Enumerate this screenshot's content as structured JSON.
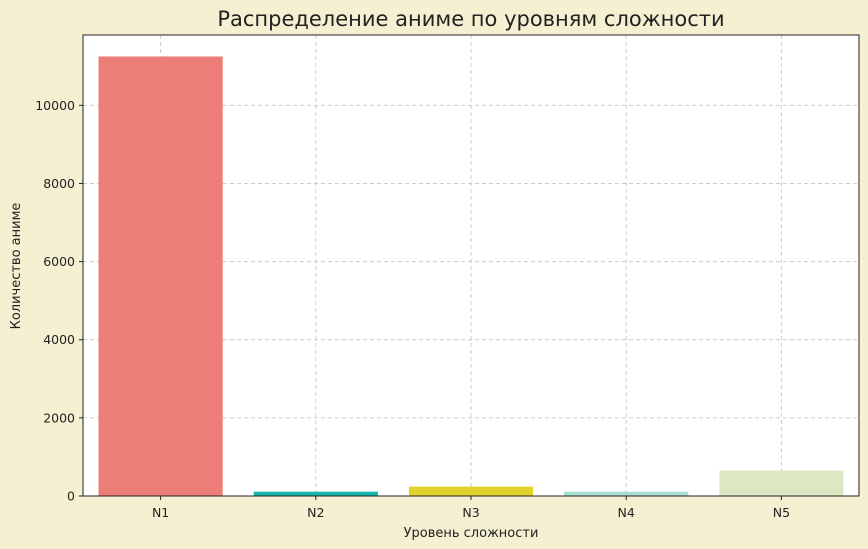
{
  "chart_data": {
    "type": "bar",
    "title": "Распределение аниме по уровням сложности",
    "xlabel": "Уровень сложности",
    "ylabel": "Количество аниме",
    "categories": [
      "N1",
      "N2",
      "N3",
      "N4",
      "N5"
    ],
    "values": [
      11250,
      110,
      240,
      110,
      650
    ],
    "colors": [
      "#ec7e77",
      "#13b5ad",
      "#e0d22b",
      "#a9ddd2",
      "#dde8c2"
    ],
    "ylim": [
      0,
      11800
    ],
    "yticks": [
      0,
      2000,
      4000,
      6000,
      8000,
      10000
    ],
    "ytick_labels": [
      "0",
      "2000",
      "4000",
      "6000",
      "8000",
      "10000"
    ],
    "grid": true,
    "background": "#f6f0d3",
    "plot_background": "#ffffff"
  }
}
